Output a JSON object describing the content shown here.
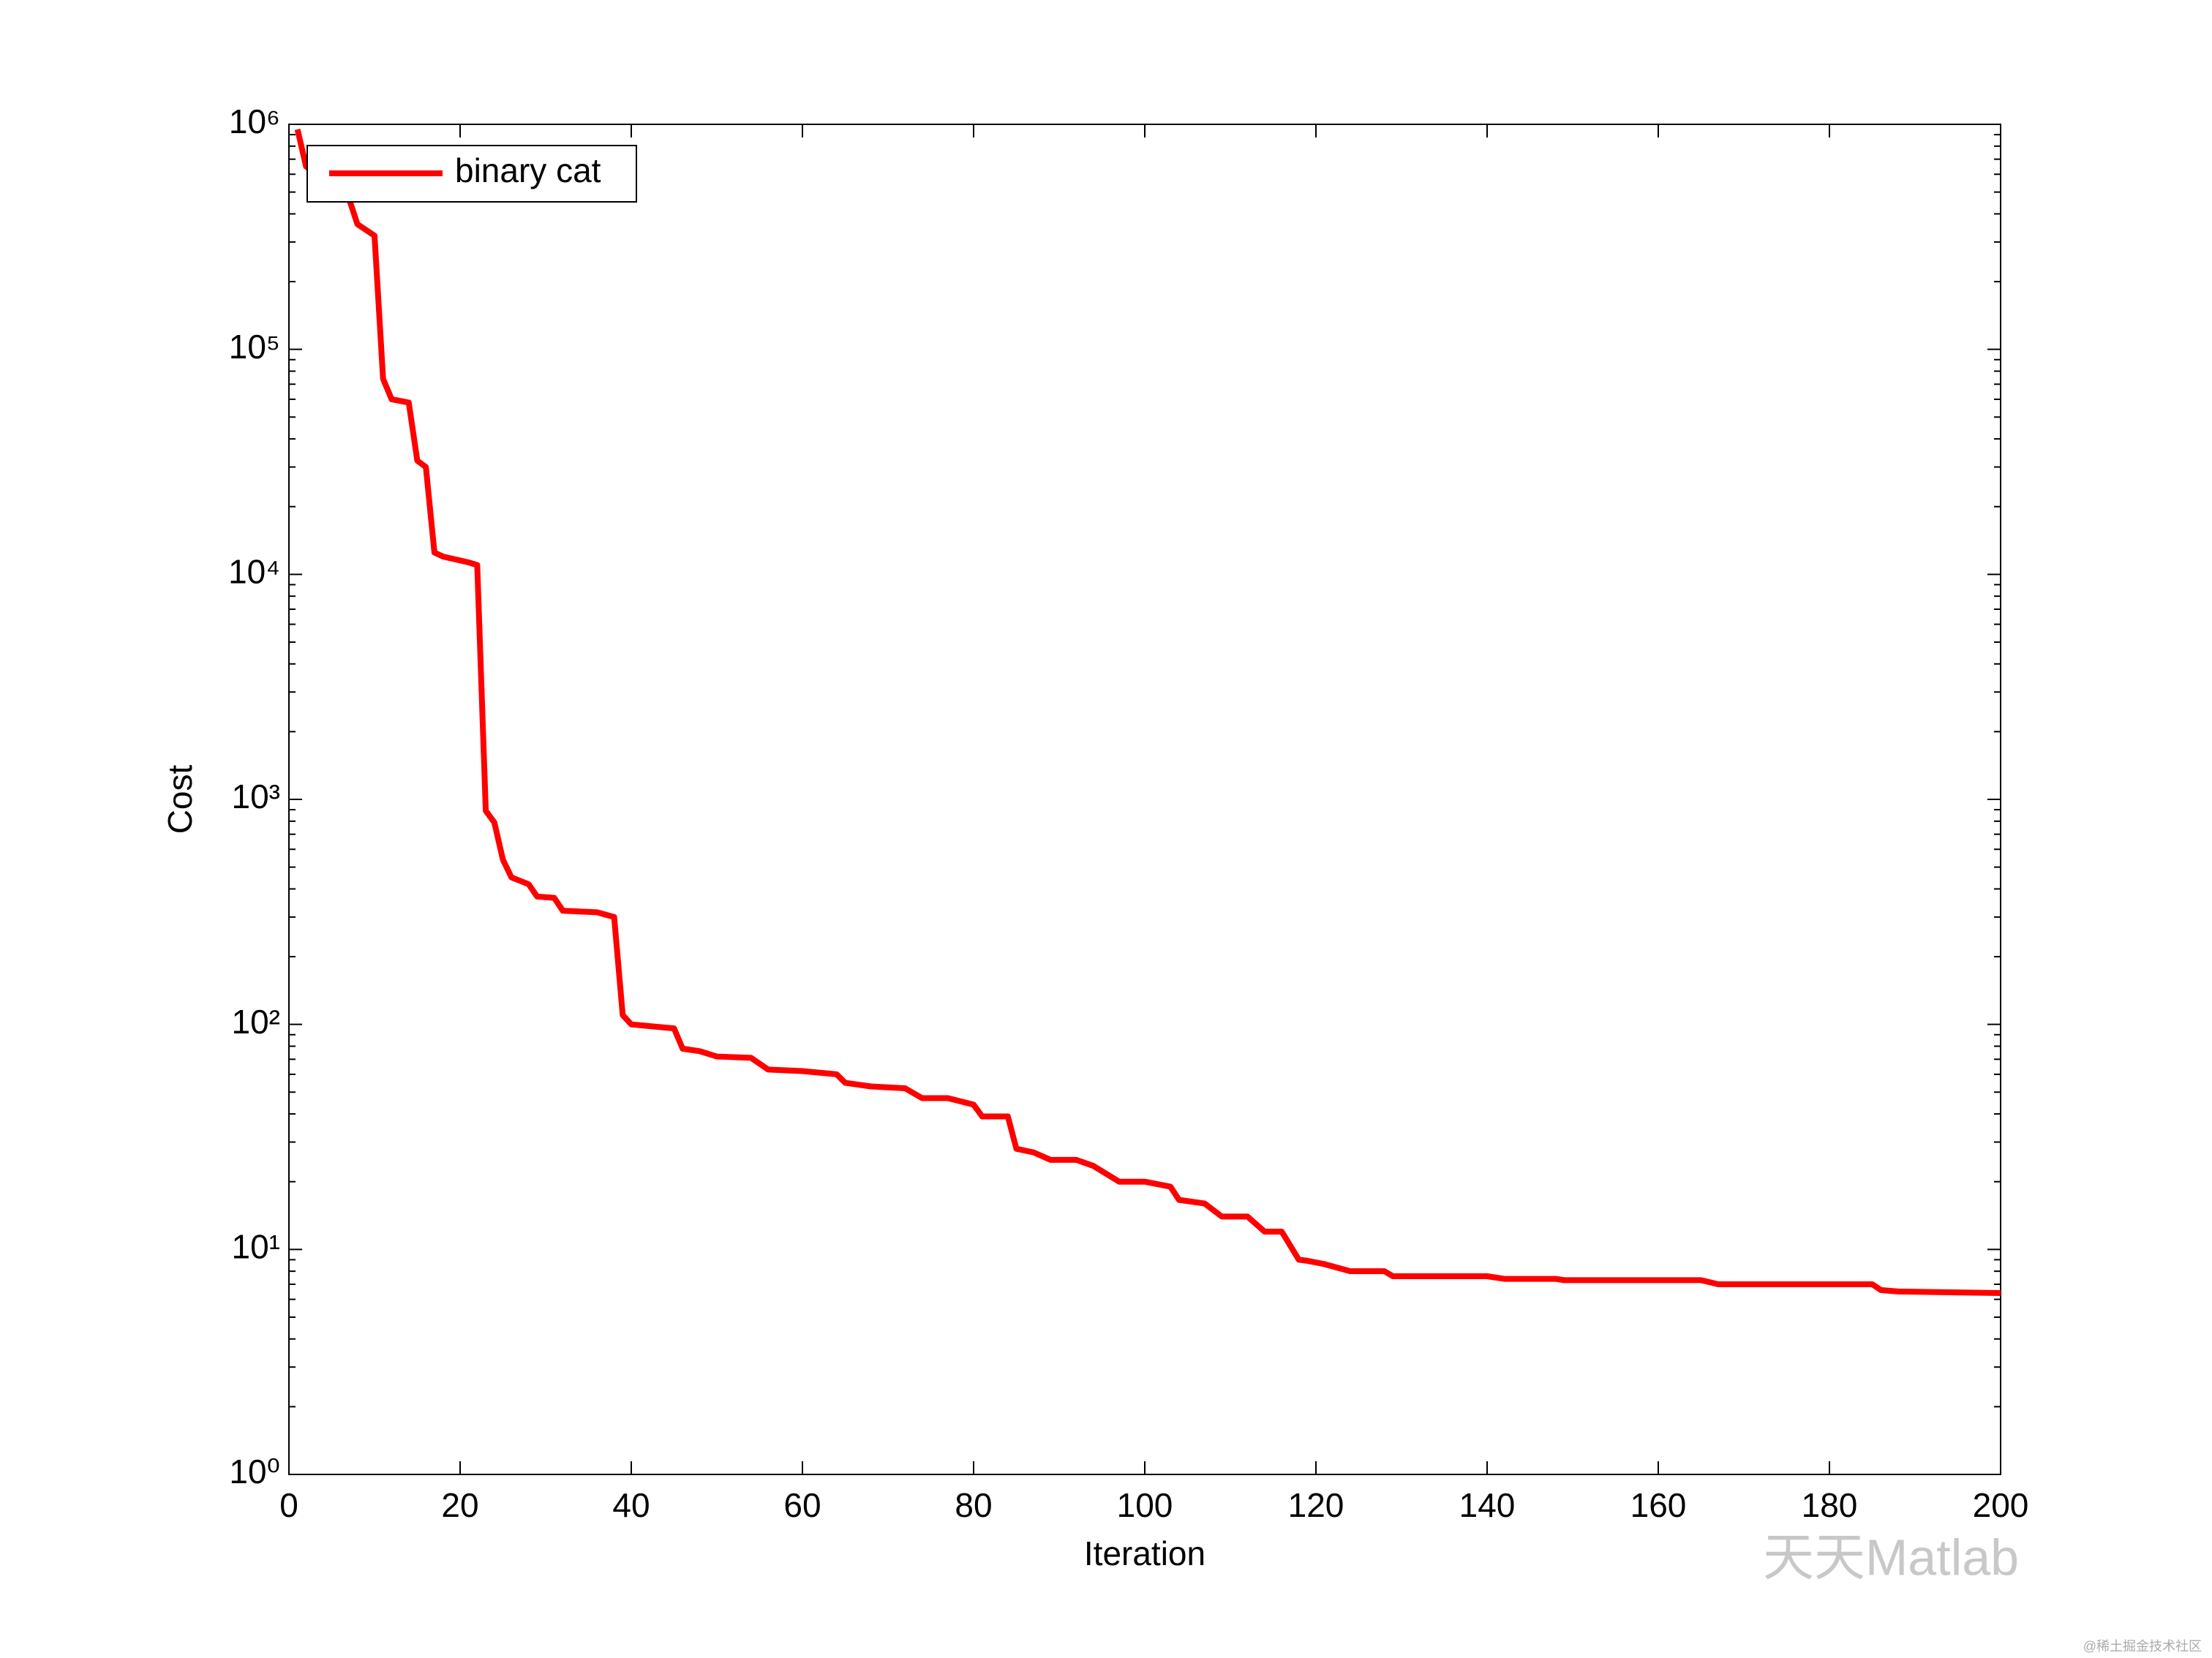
{
  "chart_data": {
    "type": "line",
    "xlabel": "Iteration",
    "ylabel": "Cost",
    "x": [
      1,
      2,
      7,
      8,
      10,
      11,
      12,
      14,
      15,
      16,
      17,
      18,
      21,
      22,
      23,
      24,
      25,
      26,
      28,
      29,
      31,
      32,
      36,
      38,
      39,
      40,
      45,
      46,
      48,
      50,
      54,
      56,
      60,
      64,
      65,
      68,
      72,
      74,
      77,
      80,
      81,
      84,
      85,
      87,
      89,
      92,
      94,
      97,
      100,
      103,
      104,
      107,
      109,
      112,
      114,
      116,
      118,
      119,
      121,
      124,
      128,
      129,
      140,
      142,
      148,
      149,
      165,
      167,
      185,
      186,
      188,
      200
    ],
    "series": [
      {
        "name": "binary cat",
        "color": "#ff0000",
        "values": [
          950000,
          650000,
          470000,
          360000,
          320000,
          74000,
          60000,
          58000,
          32000,
          30000,
          12500,
          12000,
          11300,
          11000,
          890,
          790,
          540,
          450,
          420,
          370,
          365,
          320,
          315,
          300,
          110,
          100,
          96,
          78,
          76,
          72,
          71,
          63,
          62,
          60,
          55,
          53,
          52,
          47,
          47,
          44,
          39,
          39,
          28,
          27,
          25,
          25,
          23.5,
          20,
          20,
          19,
          16.6,
          16,
          14,
          14,
          12,
          12,
          9,
          8.9,
          8.6,
          8,
          8,
          7.6,
          7.6,
          7.4,
          7.4,
          7.3,
          7.3,
          7,
          7,
          6.6,
          6.5,
          6.4
        ]
      }
    ],
    "xlim": [
      0,
      200
    ],
    "xticks": [
      0,
      20,
      40,
      60,
      80,
      100,
      120,
      140,
      160,
      180,
      200
    ],
    "ylim": [
      1,
      1000000
    ],
    "ylog": true,
    "yticks": [
      {
        "value": 1,
        "label": "10⁰"
      },
      {
        "value": 10,
        "label": "10¹"
      },
      {
        "value": 100,
        "label": "10²"
      },
      {
        "value": 1000,
        "label": "10³"
      },
      {
        "value": 10000,
        "label": "10⁴"
      },
      {
        "value": 100000,
        "label": "10⁵"
      },
      {
        "value": 1000000,
        "label": "10⁶"
      }
    ],
    "legend": "upper left",
    "grid": false,
    "watermark": "天天Matlab",
    "source": "@稀土掘金技术社区"
  }
}
